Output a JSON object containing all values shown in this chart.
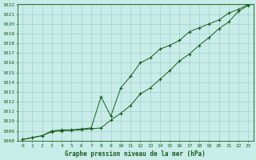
{
  "title": "Graphe pression niveau de la mer (hPa)",
  "background_color": "#c8ece8",
  "grid_color": "#9cc8c0",
  "line_color": "#1a5c1a",
  "ylim": [
    1008,
    1022
  ],
  "xlim": [
    -0.5,
    23.5
  ],
  "yticks": [
    1008,
    1009,
    1010,
    1011,
    1012,
    1013,
    1014,
    1015,
    1016,
    1017,
    1018,
    1019,
    1020,
    1021,
    1022
  ],
  "xticks": [
    0,
    1,
    2,
    3,
    4,
    5,
    6,
    7,
    8,
    9,
    10,
    11,
    12,
    13,
    14,
    15,
    16,
    17,
    18,
    19,
    20,
    21,
    22,
    23
  ],
  "series1_x": [
    0,
    1,
    2,
    3,
    4,
    5,
    6,
    7,
    8,
    9,
    10,
    11,
    12,
    13,
    14,
    15,
    16,
    17,
    18,
    19,
    20,
    21,
    22,
    23
  ],
  "series1_y": [
    1008.1,
    1008.3,
    1008.5,
    1008.9,
    1009.0,
    1009.05,
    1009.1,
    1009.2,
    1009.3,
    1010.1,
    1010.8,
    1011.6,
    1012.8,
    1013.4,
    1014.3,
    1015.2,
    1016.2,
    1016.9,
    1017.8,
    1018.6,
    1019.5,
    1020.2,
    1021.3,
    1021.9
  ],
  "series2_x": [
    0,
    1,
    2,
    3,
    4,
    5,
    6,
    7,
    8,
    9,
    10,
    11,
    12,
    13,
    14,
    15,
    16,
    17,
    18,
    19,
    20,
    21,
    22,
    23
  ],
  "series2_y": [
    1008.1,
    1008.3,
    1008.5,
    1009.0,
    1009.1,
    1009.1,
    1009.2,
    1009.3,
    1012.5,
    1010.5,
    1013.4,
    1014.6,
    1016.0,
    1016.5,
    1017.4,
    1017.8,
    1018.3,
    1019.2,
    1019.6,
    1020.0,
    1020.4,
    1021.1,
    1021.5,
    1022.0
  ],
  "marker": "+",
  "marker_size": 3.0,
  "linewidth": 0.7,
  "title_fontsize": 5.5,
  "tick_fontsize": 4.5
}
